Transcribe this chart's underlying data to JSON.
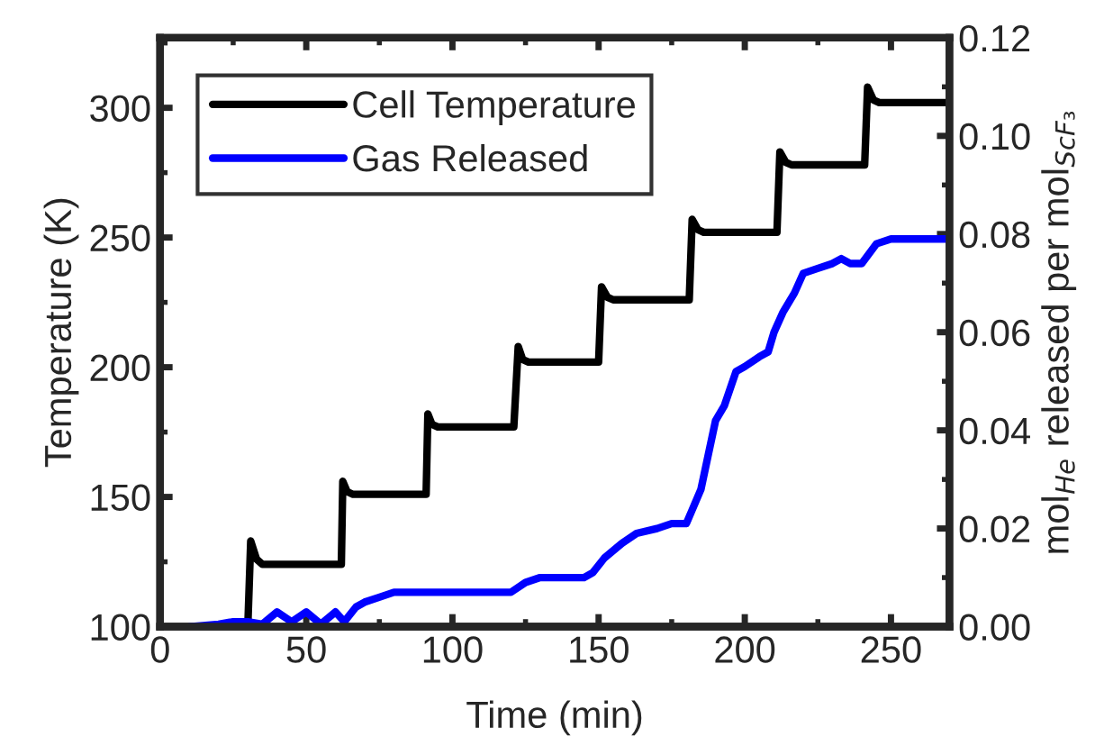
{
  "chart_data": {
    "type": "line",
    "xlabel": "Time (min)",
    "ylabel": "Temperature (K)",
    "y2label": "mol$_{He}$ released per mol$_{ScF₃}$",
    "xlim": [
      0,
      270
    ],
    "xticks": [
      0,
      50,
      100,
      150,
      200,
      250
    ],
    "ylim": [
      100,
      327
    ],
    "yticks": [
      100,
      150,
      200,
      250,
      300
    ],
    "y2lim": [
      0,
      0.12
    ],
    "y2ticks": [
      {
        "value": 0,
        "label": "0.00"
      },
      {
        "value": 0.02,
        "label": "0.02"
      },
      {
        "value": 0.04,
        "label": "0.04"
      },
      {
        "value": 0.06,
        "label": "0.06"
      },
      {
        "value": 0.08,
        "label": "0.08"
      },
      {
        "value": 0.1,
        "label": "0.10"
      },
      {
        "value": 0.12,
        "label": "0.12"
      }
    ],
    "legend": "top left",
    "grid": false,
    "marker": "none",
    "line_style": "solid",
    "series": [
      {
        "name": "Cell Temperature",
        "color": "#000000",
        "x": [
          30,
          31,
          33,
          35,
          62,
          62.5,
          64,
          66,
          91,
          91.6,
          93,
          95,
          121,
          122.5,
          124,
          126,
          150,
          151,
          153,
          155,
          181,
          182,
          184,
          186,
          211,
          212,
          214,
          216,
          241,
          242,
          244,
          246,
          270
        ],
        "values": [
          100,
          133,
          126,
          124,
          124,
          156,
          152,
          151,
          151,
          182,
          178,
          177,
          177,
          208,
          203,
          202,
          202,
          231,
          227,
          226,
          226,
          257,
          253,
          252,
          252,
          283,
          279,
          278,
          278,
          308,
          303,
          302,
          302
        ]
      },
      {
        "name": "Gas Released",
        "color": "#0000ff",
        "axis": "y2",
        "x": [
          10,
          20,
          25,
          30,
          35,
          40,
          45,
          50,
          55,
          60,
          63,
          67,
          70,
          75,
          80,
          100,
          120,
          125,
          130,
          145,
          148,
          152,
          158,
          163,
          170,
          175,
          180,
          185,
          190,
          193,
          197,
          200,
          205,
          208,
          210,
          213,
          217,
          220,
          225,
          230,
          233,
          236,
          240,
          245,
          250,
          270
        ],
        "values": [
          0,
          0.0005,
          0.001,
          0.001,
          0.0005,
          0.003,
          0.001,
          0.003,
          0.0005,
          0.003,
          0.001,
          0.004,
          0.005,
          0.006,
          0.007,
          0.007,
          0.007,
          0.009,
          0.01,
          0.01,
          0.011,
          0.014,
          0.017,
          0.019,
          0.02,
          0.021,
          0.021,
          0.028,
          0.042,
          0.045,
          0.052,
          0.053,
          0.055,
          0.056,
          0.06,
          0.064,
          0.068,
          0.072,
          0.073,
          0.074,
          0.075,
          0.074,
          0.074,
          0.078,
          0.079,
          0.079
        ]
      }
    ]
  }
}
